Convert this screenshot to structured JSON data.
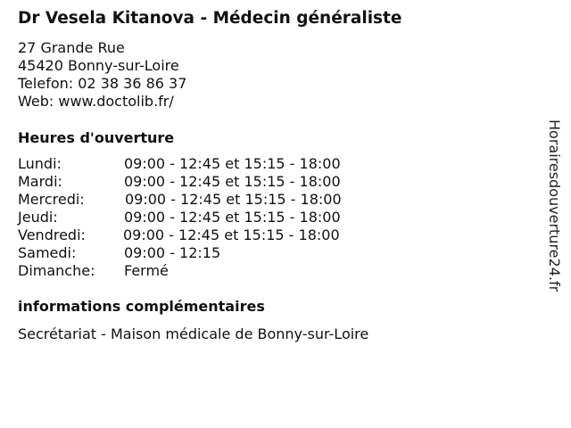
{
  "title": "Dr Vesela Kitanova - Médecin généraliste",
  "address": {
    "street": "27 Grande Rue",
    "city": "45420 Bonny-sur-Loire",
    "phone": "Telefon: 02 38 36 86 37",
    "web": "Web: www.doctolib.fr/"
  },
  "hours_heading": "Heures d'ouverture",
  "hours": [
    {
      "day": "Lundi:",
      "time": "09:00 - 12:45 et 15:15 - 18:00"
    },
    {
      "day": "Mardi:",
      "time": "09:00 - 12:45 et 15:15 - 18:00"
    },
    {
      "day": "Mercredi:",
      "time": "09:00 - 12:45 et 15:15 - 18:00"
    },
    {
      "day": "Jeudi:",
      "time": "09:00 - 12:45 et 15:15 - 18:00"
    },
    {
      "day": "Vendredi:",
      "time": "09:00 - 12:45 et 15:15 - 18:00"
    },
    {
      "day": "Samedi:",
      "time": "09:00 - 12:15"
    },
    {
      "day": "Dimanche:",
      "time": "Fermé"
    }
  ],
  "info_heading": "informations complémentaires",
  "info_text": "Secrétariat - Maison médicale de Bonny-sur-Loire",
  "watermark": "Horairesdouverture24.fr"
}
